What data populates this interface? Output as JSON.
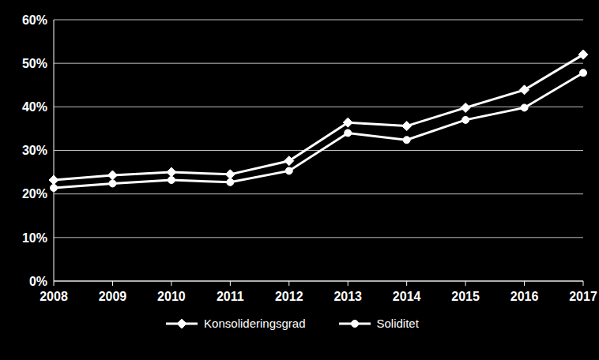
{
  "chart_data": {
    "type": "line",
    "categories": [
      "2008",
      "2009",
      "2010",
      "2011",
      "2012",
      "2013",
      "2014",
      "2015",
      "2016",
      "2017"
    ],
    "series": [
      {
        "name": "Konsolideringsgrad",
        "color": "#ffffff",
        "marker": "diamond",
        "values": [
          23.2,
          24.3,
          25.0,
          24.5,
          27.6,
          36.4,
          35.6,
          39.8,
          43.9,
          52.0
        ]
      },
      {
        "name": "Soliditet",
        "color": "#ffffff",
        "marker": "circle",
        "values": [
          21.4,
          22.4,
          23.2,
          22.7,
          25.3,
          34.0,
          32.4,
          37.0,
          39.8,
          47.8
        ]
      }
    ],
    "ylim": [
      0,
      60
    ],
    "yticks": [
      {
        "value": 0,
        "label": "0%"
      },
      {
        "value": 10,
        "label": "10%"
      },
      {
        "value": 20,
        "label": "20%"
      },
      {
        "value": 30,
        "label": "30%"
      },
      {
        "value": 40,
        "label": "40%"
      },
      {
        "value": 50,
        "label": "50%"
      },
      {
        "value": 60,
        "label": "60%"
      }
    ],
    "grid": true,
    "legend": "bottom"
  }
}
